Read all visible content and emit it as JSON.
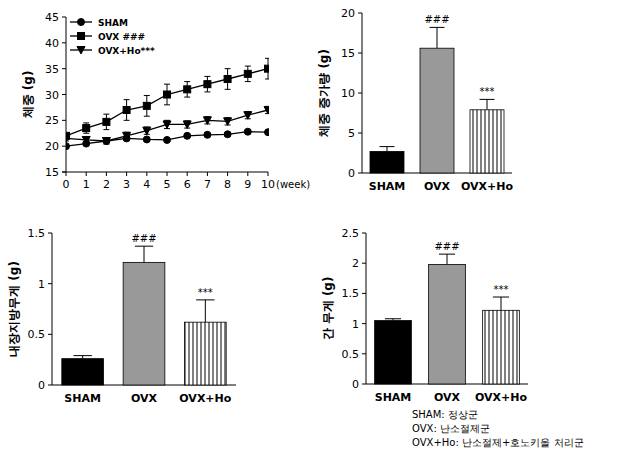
{
  "chart_data": [
    {
      "type": "line",
      "ylabel": "체중 (g)",
      "xlabel": "(week)",
      "x": [
        0,
        1,
        2,
        3,
        4,
        5,
        6,
        7,
        8,
        9,
        10
      ],
      "xlim": [
        0,
        10
      ],
      "xticks": [
        0,
        1,
        2,
        3,
        4,
        5,
        6,
        7,
        8,
        9,
        10
      ],
      "ylim": [
        15,
        45
      ],
      "yticks": [
        15,
        20,
        25,
        30,
        35,
        40,
        45
      ],
      "grid": false,
      "legend": "upper left",
      "series": [
        {
          "name": "SHAM",
          "color": "#000000",
          "marker": "circle",
          "values": [
            20,
            20.5,
            21,
            21.5,
            21.3,
            21.2,
            22,
            22.2,
            22.3,
            22.8,
            22.7
          ],
          "errors": [
            0.3,
            0.3,
            0.3,
            0.4,
            0.3,
            0.3,
            0.3,
            0.3,
            0.3,
            0.3,
            0.3
          ]
        },
        {
          "name": "OVX ###",
          "color": "#000000",
          "marker": "square",
          "values": [
            22,
            23.5,
            24.7,
            27,
            27.8,
            30,
            31,
            32,
            33,
            34,
            35
          ],
          "errors": [
            0.5,
            1,
            1.5,
            2,
            2,
            2,
            1.5,
            1.5,
            2,
            1.5,
            2
          ]
        },
        {
          "name": "OVX+Ho***",
          "color": "#000000",
          "marker": "triangle-down",
          "values": [
            21.5,
            21.2,
            21,
            22,
            23,
            24.2,
            24.2,
            25,
            24.8,
            26,
            27
          ],
          "errors": [
            0.5,
            0.6,
            0.6,
            0.7,
            0.7,
            0.8,
            0.7,
            0.7,
            0.7,
            0.7,
            0.7
          ]
        }
      ]
    },
    {
      "type": "bar",
      "ylabel": "체중 증가량 (g)",
      "categories": [
        "SHAM",
        "OVX",
        "OVX+Ho"
      ],
      "values": [
        2.7,
        15.6,
        7.9
      ],
      "errors": [
        0.6,
        2.6,
        1.3
      ],
      "colors": [
        "#000000",
        "#999999",
        "#ffffff"
      ],
      "ylim": [
        0,
        20
      ],
      "yticks": [
        0,
        5,
        10,
        15,
        20
      ],
      "grid": false,
      "annotations": [
        {
          "category": "OVX",
          "text": "###"
        },
        {
          "category": "OVX+Ho",
          "text": "***"
        }
      ]
    },
    {
      "type": "bar",
      "ylabel": "내장지방무게 (g)",
      "categories": [
        "SHAM",
        "OVX",
        "OVX+Ho"
      ],
      "values": [
        0.26,
        1.21,
        0.62
      ],
      "errors": [
        0.03,
        0.16,
        0.22
      ],
      "colors": [
        "#000000",
        "#999999",
        "#ffffff"
      ],
      "ylim": [
        0,
        1.5
      ],
      "yticks": [
        0,
        0.5,
        1,
        1.5
      ],
      "grid": false,
      "annotations": [
        {
          "category": "OVX",
          "text": "###"
        },
        {
          "category": "OVX+Ho",
          "text": "***"
        }
      ]
    },
    {
      "type": "bar",
      "ylabel": "간 무게 (g)",
      "categories": [
        "SHAM",
        "OVX",
        "OVX+Ho"
      ],
      "values": [
        1.05,
        1.98,
        1.22
      ],
      "errors": [
        0.03,
        0.17,
        0.22
      ],
      "colors": [
        "#000000",
        "#999999",
        "#ffffff"
      ],
      "ylim": [
        0,
        2.5
      ],
      "yticks": [
        0,
        0.5,
        1,
        1.5,
        2,
        2.5
      ],
      "grid": false,
      "annotations": [
        {
          "category": "OVX",
          "text": "###"
        },
        {
          "category": "OVX+Ho",
          "text": "***"
        }
      ]
    }
  ],
  "footnote": [
    "SHAM: 정상군",
    "OVX: 난소절제군",
    "OVX+Ho: 난소절제+호노키올 처리군"
  ]
}
